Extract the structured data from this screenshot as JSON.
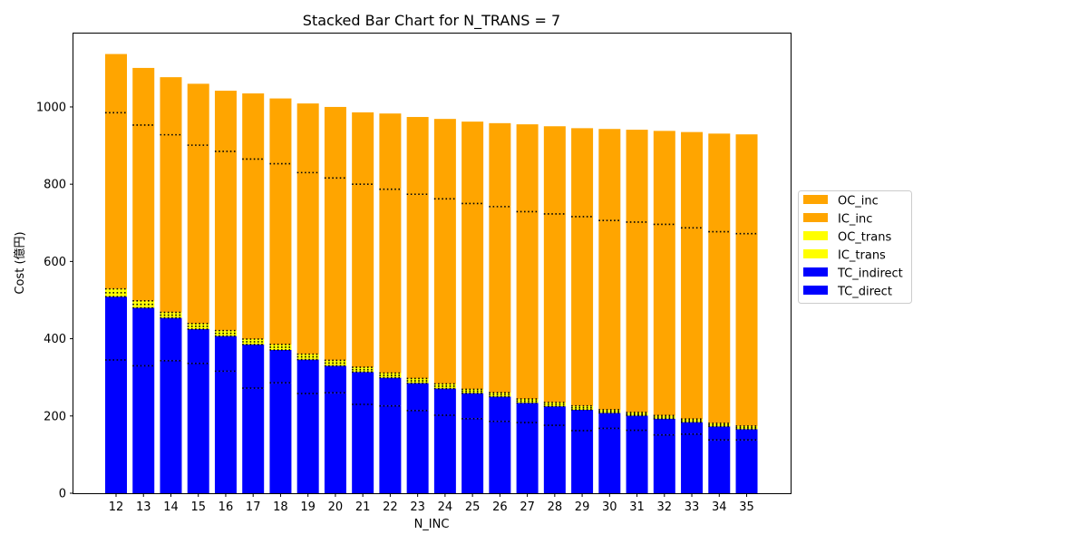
{
  "chart_data": {
    "type": "bar",
    "stacked": true,
    "title": "Stacked Bar Chart for N_TRANS = 7",
    "xlabel": "N_INC",
    "ylabel": "Cost (億円)",
    "ylim": [
      0,
      1190
    ],
    "yticks": [
      0,
      200,
      400,
      600,
      800,
      1000
    ],
    "grid": false,
    "legend_position": "right",
    "categories": [
      "12",
      "13",
      "14",
      "15",
      "16",
      "17",
      "18",
      "19",
      "20",
      "21",
      "22",
      "23",
      "24",
      "25",
      "26",
      "27",
      "28",
      "29",
      "30",
      "31",
      "32",
      "33",
      "34",
      "35"
    ],
    "series": [
      {
        "name": "TC_direct",
        "color": "#0000ff",
        "values": [
          345,
          330,
          343,
          336,
          316,
          272,
          286,
          258,
          260,
          230,
          226,
          214,
          202,
          193,
          186,
          183,
          176,
          162,
          168,
          163,
          151,
          153,
          138,
          138
        ]
      },
      {
        "name": "TC_indirect",
        "color": "#0000ff",
        "values": [
          164,
          150,
          111,
          89,
          91,
          113,
          85,
          88,
          70,
          84,
          73,
          71,
          69,
          66,
          64,
          51,
          49,
          54,
          40,
          38,
          42,
          31,
          35,
          28
        ]
      },
      {
        "name": "IC_trans",
        "color": "#ffff00",
        "values": [
          10,
          9,
          7,
          7,
          7,
          7,
          7,
          7,
          7,
          6,
          6,
          6,
          6,
          5,
          5,
          5,
          5,
          5,
          4,
          4,
          4,
          4,
          4,
          4
        ]
      },
      {
        "name": "OC_trans",
        "color": "#ffff00",
        "values": [
          10,
          9,
          7,
          7,
          7,
          7,
          7,
          7,
          7,
          6,
          6,
          6,
          6,
          5,
          5,
          5,
          5,
          5,
          4,
          4,
          4,
          4,
          4,
          4
        ]
      },
      {
        "name": "IC_inc",
        "color": "#ffa500",
        "values": [
          456,
          455,
          460,
          462,
          464,
          466,
          468,
          470,
          472,
          474,
          476,
          477,
          479,
          481,
          482,
          485,
          488,
          490,
          490,
          493,
          495,
          495,
          496,
          498
        ]
      },
      {
        "name": "OC_inc",
        "color": "#ffa500",
        "values": [
          152,
          148,
          149,
          159,
          157,
          170,
          169,
          179,
          184,
          186,
          196,
          200,
          207,
          212,
          216,
          226,
          227,
          229,
          237,
          239,
          242,
          248,
          254,
          257
        ]
      }
    ]
  }
}
